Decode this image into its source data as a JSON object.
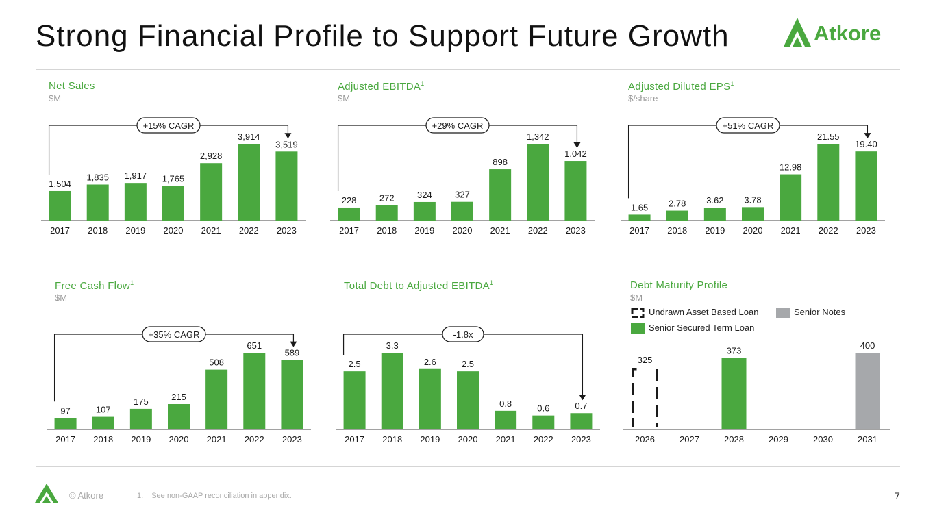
{
  "page": {
    "title": "Strong Financial Profile to Support Future Growth",
    "logo_text": "Atkore",
    "copyright": "© Atkore",
    "footnote_number": "1.",
    "footnote_text": "See non-GAAP reconciliation in appendix.",
    "page_number": "7"
  },
  "colors": {
    "green": "#4aa83f",
    "gray": "#a6a8ab",
    "dark": "#1a1a1a"
  },
  "chart_data": [
    {
      "id": "net_sales",
      "type": "bar",
      "title": "Net Sales",
      "superscript": "",
      "unit": "$M",
      "categories": [
        "2017",
        "2018",
        "2019",
        "2020",
        "2021",
        "2022",
        "2023"
      ],
      "values": [
        1504,
        1835,
        1917,
        1765,
        2928,
        3914,
        3519
      ],
      "labels": [
        "1,504",
        "1,835",
        "1,917",
        "1,765",
        "2,928",
        "3,914",
        "3,519"
      ],
      "ylim": [
        0,
        3914
      ],
      "annotation": "+15% CAGR"
    },
    {
      "id": "adj_ebitda",
      "type": "bar",
      "title": "Adjusted EBITDA",
      "superscript": "1",
      "unit": "$M",
      "categories": [
        "2017",
        "2018",
        "2019",
        "2020",
        "2021",
        "2022",
        "2023"
      ],
      "values": [
        228,
        272,
        324,
        327,
        898,
        1342,
        1042
      ],
      "labels": [
        "228",
        "272",
        "324",
        "327",
        "898",
        "1,342",
        "1,042"
      ],
      "ylim": [
        0,
        1342
      ],
      "annotation": "+29% CAGR"
    },
    {
      "id": "adj_eps",
      "type": "bar",
      "title": "Adjusted Diluted EPS",
      "superscript": "1",
      "unit": "$/share",
      "categories": [
        "2017",
        "2018",
        "2019",
        "2020",
        "2021",
        "2022",
        "2023"
      ],
      "values": [
        1.65,
        2.78,
        3.62,
        3.78,
        12.98,
        21.55,
        19.4
      ],
      "labels": [
        "1.65",
        "2.78",
        "3.62",
        "3.78",
        "12.98",
        "21.55",
        "19.40"
      ],
      "ylim": [
        0,
        21.55
      ],
      "annotation": "+51% CAGR"
    },
    {
      "id": "fcf",
      "type": "bar",
      "title": "Free Cash Flow",
      "superscript": "1",
      "unit": "$M",
      "categories": [
        "2017",
        "2018",
        "2019",
        "2020",
        "2021",
        "2022",
        "2023"
      ],
      "values": [
        97,
        107,
        175,
        215,
        508,
        651,
        589
      ],
      "labels": [
        "97",
        "107",
        "175",
        "215",
        "508",
        "651",
        "589"
      ],
      "ylim": [
        0,
        651
      ],
      "annotation": "+35% CAGR"
    },
    {
      "id": "debt_ebitda",
      "type": "bar",
      "title": "Total Debt to Adjusted EBITDA",
      "superscript": "1",
      "unit": "",
      "categories": [
        "2017",
        "2018",
        "2019",
        "2020",
        "2021",
        "2022",
        "2023"
      ],
      "values": [
        2.5,
        3.3,
        2.6,
        2.5,
        0.8,
        0.6,
        0.7
      ],
      "labels": [
        "2.5",
        "3.3",
        "2.6",
        "2.5",
        "0.8",
        "0.6",
        "0.7"
      ],
      "ylim": [
        0,
        3.3
      ],
      "annotation": "-1.8x"
    },
    {
      "id": "debt_maturity",
      "type": "bar",
      "title": "Debt Maturity Profile",
      "superscript": "",
      "unit": "$M",
      "categories": [
        "2026",
        "2027",
        "2028",
        "2029",
        "2030",
        "2031"
      ],
      "values": [
        325,
        0,
        373,
        0,
        0,
        400
      ],
      "labels": [
        "325",
        "",
        "373",
        "",
        "",
        "400"
      ],
      "series_type": [
        "undrawn",
        "none",
        "term",
        "none",
        "none",
        "notes"
      ],
      "ylim": [
        0,
        400
      ],
      "legend": [
        {
          "key": "undrawn",
          "label": "Undrawn Asset Based Loan"
        },
        {
          "key": "notes",
          "label": "Senior Notes"
        },
        {
          "key": "term",
          "label": "Senior Secured Term Loan"
        }
      ]
    }
  ]
}
